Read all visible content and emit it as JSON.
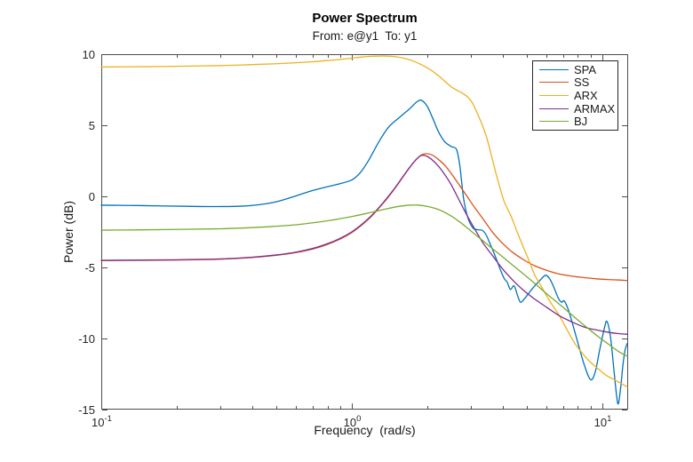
{
  "figure": {
    "title": "Power Spectrum",
    "subtitle": "From: e@y1  To: y1",
    "xlabel": "Frequency  (rad/s)",
    "ylabel": "Power (dB)"
  },
  "legend": {
    "position": "northeast",
    "entries": [
      {
        "label": "SPA",
        "color": "#0072BD"
      },
      {
        "label": "SS",
        "color": "#D95319"
      },
      {
        "label": "ARX",
        "color": "#EDB120"
      },
      {
        "label": "ARMAX",
        "color": "#7E2F8E"
      },
      {
        "label": "BJ",
        "color": "#77AC30"
      }
    ]
  },
  "chart_data": {
    "type": "line",
    "title": "Power Spectrum",
    "subtitle": "From: e@y1  To: y1",
    "xlabel": "Frequency  (rad/s)",
    "ylabel": "Power (dB)",
    "xscale": "log",
    "xlim": [
      0.1,
      12.7
    ],
    "ylim": [
      -15,
      10
    ],
    "grid": false,
    "legend_position": "northeast",
    "axis_color": "#4d4d4d",
    "text_color": "#262626",
    "y_ticks": [
      10,
      5,
      0,
      -5,
      -10,
      -15
    ],
    "x_major_ticks": [
      {
        "value": 0.1,
        "base": "10",
        "exp": "-1"
      },
      {
        "value": 1,
        "base": "10",
        "exp": "0"
      },
      {
        "value": 10,
        "base": "10",
        "exp": "1"
      }
    ],
    "x_minor_ticks": [
      0.2,
      0.3,
      0.4,
      0.5,
      0.6,
      0.7,
      0.8,
      0.9,
      2,
      3,
      4,
      5,
      6,
      7,
      8,
      9
    ],
    "series": [
      {
        "name": "SPA",
        "color": "#0072BD",
        "points": [
          [
            0.1,
            -0.62
          ],
          [
            0.13,
            -0.64
          ],
          [
            0.17,
            -0.67
          ],
          [
            0.22,
            -0.7
          ],
          [
            0.28,
            -0.72
          ],
          [
            0.35,
            -0.7
          ],
          [
            0.42,
            -0.6
          ],
          [
            0.5,
            -0.38
          ],
          [
            0.58,
            -0.05
          ],
          [
            0.68,
            0.35
          ],
          [
            0.78,
            0.63
          ],
          [
            0.88,
            0.85
          ],
          [
            1.0,
            1.15
          ],
          [
            1.08,
            1.65
          ],
          [
            1.17,
            2.55
          ],
          [
            1.28,
            3.8
          ],
          [
            1.4,
            4.85
          ],
          [
            1.55,
            5.55
          ],
          [
            1.7,
            6.15
          ],
          [
            1.82,
            6.65
          ],
          [
            1.9,
            6.75
          ],
          [
            2.0,
            6.35
          ],
          [
            2.1,
            5.55
          ],
          [
            2.22,
            4.55
          ],
          [
            2.35,
            3.85
          ],
          [
            2.5,
            3.5
          ],
          [
            2.62,
            3.3
          ],
          [
            2.7,
            2.2
          ],
          [
            2.8,
            -0.2
          ],
          [
            2.92,
            -1.6
          ],
          [
            3.06,
            -2.25
          ],
          [
            3.2,
            -2.35
          ],
          [
            3.33,
            -2.4
          ],
          [
            3.45,
            -2.75
          ],
          [
            3.6,
            -3.5
          ],
          [
            3.77,
            -4.35
          ],
          [
            3.95,
            -5.3
          ],
          [
            4.07,
            -5.8
          ],
          [
            4.18,
            -6.05
          ],
          [
            4.3,
            -6.55
          ],
          [
            4.45,
            -6.3
          ],
          [
            4.6,
            -7.0
          ],
          [
            4.72,
            -7.45
          ],
          [
            4.9,
            -7.2
          ],
          [
            5.1,
            -6.8
          ],
          [
            5.35,
            -6.35
          ],
          [
            5.65,
            -5.9
          ],
          [
            5.95,
            -5.55
          ],
          [
            6.2,
            -5.85
          ],
          [
            6.45,
            -6.5
          ],
          [
            6.7,
            -7.2
          ],
          [
            6.9,
            -7.45
          ],
          [
            7.05,
            -7.35
          ],
          [
            7.3,
            -7.9
          ],
          [
            7.6,
            -8.9
          ],
          [
            8.0,
            -10.3
          ],
          [
            8.5,
            -11.9
          ],
          [
            9.0,
            -12.9
          ],
          [
            9.4,
            -12.3
          ],
          [
            9.8,
            -10.7
          ],
          [
            10.2,
            -9.3
          ],
          [
            10.45,
            -8.8
          ],
          [
            10.8,
            -9.9
          ],
          [
            11.1,
            -11.9
          ],
          [
            11.4,
            -13.9
          ],
          [
            11.6,
            -14.6
          ],
          [
            11.85,
            -13.5
          ],
          [
            12.1,
            -11.9
          ],
          [
            12.35,
            -10.8
          ],
          [
            12.6,
            -10.35
          ]
        ]
      },
      {
        "name": "SS",
        "color": "#D95319",
        "points": [
          [
            0.1,
            -4.52
          ],
          [
            0.15,
            -4.5
          ],
          [
            0.2,
            -4.48
          ],
          [
            0.3,
            -4.42
          ],
          [
            0.4,
            -4.3
          ],
          [
            0.5,
            -4.15
          ],
          [
            0.6,
            -3.95
          ],
          [
            0.7,
            -3.7
          ],
          [
            0.8,
            -3.38
          ],
          [
            0.9,
            -3.0
          ],
          [
            1.0,
            -2.55
          ],
          [
            1.1,
            -2.0
          ],
          [
            1.2,
            -1.4
          ],
          [
            1.3,
            -0.72
          ],
          [
            1.4,
            -0.05
          ],
          [
            1.5,
            0.65
          ],
          [
            1.6,
            1.35
          ],
          [
            1.7,
            2.0
          ],
          [
            1.8,
            2.55
          ],
          [
            1.9,
            2.92
          ],
          [
            2.0,
            3.0
          ],
          [
            2.1,
            2.9
          ],
          [
            2.2,
            2.65
          ],
          [
            2.35,
            2.2
          ],
          [
            2.5,
            1.6
          ],
          [
            2.7,
            0.75
          ],
          [
            2.9,
            -0.05
          ],
          [
            3.1,
            -0.8
          ],
          [
            3.35,
            -1.6
          ],
          [
            3.66,
            -2.55
          ],
          [
            4.0,
            -3.3
          ],
          [
            4.4,
            -3.95
          ],
          [
            4.9,
            -4.5
          ],
          [
            5.4,
            -4.9
          ],
          [
            6.0,
            -5.2
          ],
          [
            6.7,
            -5.45
          ],
          [
            7.5,
            -5.6
          ],
          [
            8.5,
            -5.72
          ],
          [
            9.5,
            -5.8
          ],
          [
            10.5,
            -5.85
          ],
          [
            11.5,
            -5.88
          ],
          [
            12.6,
            -5.92
          ]
        ]
      },
      {
        "name": "ARX",
        "color": "#EDB120",
        "points": [
          [
            0.1,
            9.1
          ],
          [
            0.15,
            9.12
          ],
          [
            0.2,
            9.15
          ],
          [
            0.3,
            9.2
          ],
          [
            0.4,
            9.27
          ],
          [
            0.5,
            9.33
          ],
          [
            0.6,
            9.4
          ],
          [
            0.7,
            9.47
          ],
          [
            0.8,
            9.55
          ],
          [
            0.9,
            9.63
          ],
          [
            1.0,
            9.72
          ],
          [
            1.1,
            9.8
          ],
          [
            1.2,
            9.85
          ],
          [
            1.35,
            9.87
          ],
          [
            1.5,
            9.82
          ],
          [
            1.65,
            9.68
          ],
          [
            1.8,
            9.45
          ],
          [
            2.0,
            9.05
          ],
          [
            2.2,
            8.55
          ],
          [
            2.5,
            7.7
          ],
          [
            2.8,
            7.2
          ],
          [
            3.0,
            6.7
          ],
          [
            3.2,
            5.7
          ],
          [
            3.45,
            4.2
          ],
          [
            3.77,
            1.6
          ],
          [
            4.05,
            -0.3
          ],
          [
            4.33,
            -1.4
          ],
          [
            4.6,
            -2.6
          ],
          [
            4.88,
            -3.7
          ],
          [
            5.1,
            -4.5
          ],
          [
            5.37,
            -5.5
          ],
          [
            5.7,
            -6.3
          ],
          [
            6.0,
            -7.0
          ],
          [
            6.3,
            -7.6
          ],
          [
            6.75,
            -8.4
          ],
          [
            7.2,
            -9.3
          ],
          [
            7.75,
            -10.3
          ],
          [
            8.3,
            -11.0
          ],
          [
            8.9,
            -11.6
          ],
          [
            9.6,
            -12.1
          ],
          [
            10.4,
            -12.6
          ],
          [
            11.2,
            -12.9
          ],
          [
            12.0,
            -13.2
          ],
          [
            12.6,
            -13.4
          ]
        ]
      },
      {
        "name": "ARMAX",
        "color": "#7E2F8E",
        "points": [
          [
            0.1,
            -4.5
          ],
          [
            0.15,
            -4.48
          ],
          [
            0.2,
            -4.46
          ],
          [
            0.3,
            -4.4
          ],
          [
            0.4,
            -4.28
          ],
          [
            0.5,
            -4.12
          ],
          [
            0.6,
            -3.92
          ],
          [
            0.7,
            -3.66
          ],
          [
            0.8,
            -3.33
          ],
          [
            0.9,
            -2.95
          ],
          [
            1.0,
            -2.5
          ],
          [
            1.1,
            -1.95
          ],
          [
            1.2,
            -1.35
          ],
          [
            1.3,
            -0.68
          ],
          [
            1.4,
            0.0
          ],
          [
            1.5,
            0.68
          ],
          [
            1.6,
            1.38
          ],
          [
            1.7,
            2.02
          ],
          [
            1.8,
            2.55
          ],
          [
            1.88,
            2.85
          ],
          [
            1.95,
            2.88
          ],
          [
            2.05,
            2.7
          ],
          [
            2.2,
            2.2
          ],
          [
            2.35,
            1.55
          ],
          [
            2.5,
            0.8
          ],
          [
            2.7,
            -0.35
          ],
          [
            2.9,
            -1.4
          ],
          [
            3.1,
            -2.3
          ],
          [
            3.35,
            -3.3
          ],
          [
            3.66,
            -4.2
          ],
          [
            4.0,
            -5.1
          ],
          [
            4.4,
            -5.9
          ],
          [
            4.88,
            -6.65
          ],
          [
            5.4,
            -7.25
          ],
          [
            6.0,
            -7.8
          ],
          [
            6.75,
            -8.4
          ],
          [
            7.5,
            -8.8
          ],
          [
            8.5,
            -9.2
          ],
          [
            9.5,
            -9.4
          ],
          [
            10.5,
            -9.55
          ],
          [
            11.5,
            -9.65
          ],
          [
            12.6,
            -9.7
          ]
        ]
      },
      {
        "name": "BJ",
        "color": "#77AC30",
        "points": [
          [
            0.1,
            -2.38
          ],
          [
            0.2,
            -2.33
          ],
          [
            0.3,
            -2.28
          ],
          [
            0.4,
            -2.2
          ],
          [
            0.5,
            -2.1
          ],
          [
            0.6,
            -2.0
          ],
          [
            0.7,
            -1.86
          ],
          [
            0.8,
            -1.72
          ],
          [
            0.9,
            -1.57
          ],
          [
            1.0,
            -1.42
          ],
          [
            1.1,
            -1.27
          ],
          [
            1.25,
            -1.05
          ],
          [
            1.4,
            -0.85
          ],
          [
            1.55,
            -0.7
          ],
          [
            1.7,
            -0.62
          ],
          [
            1.85,
            -0.62
          ],
          [
            2.0,
            -0.7
          ],
          [
            2.2,
            -0.9
          ],
          [
            2.45,
            -1.3
          ],
          [
            2.7,
            -1.8
          ],
          [
            3.0,
            -2.45
          ],
          [
            3.3,
            -3.05
          ],
          [
            3.66,
            -3.7
          ],
          [
            4.0,
            -4.25
          ],
          [
            4.4,
            -4.85
          ],
          [
            4.88,
            -5.5
          ],
          [
            5.4,
            -6.15
          ],
          [
            6.0,
            -6.85
          ],
          [
            6.6,
            -7.45
          ],
          [
            7.3,
            -8.1
          ],
          [
            8.0,
            -8.7
          ],
          [
            8.8,
            -9.3
          ],
          [
            9.7,
            -9.9
          ],
          [
            10.6,
            -10.4
          ],
          [
            11.6,
            -10.9
          ],
          [
            12.6,
            -11.25
          ]
        ]
      }
    ]
  }
}
